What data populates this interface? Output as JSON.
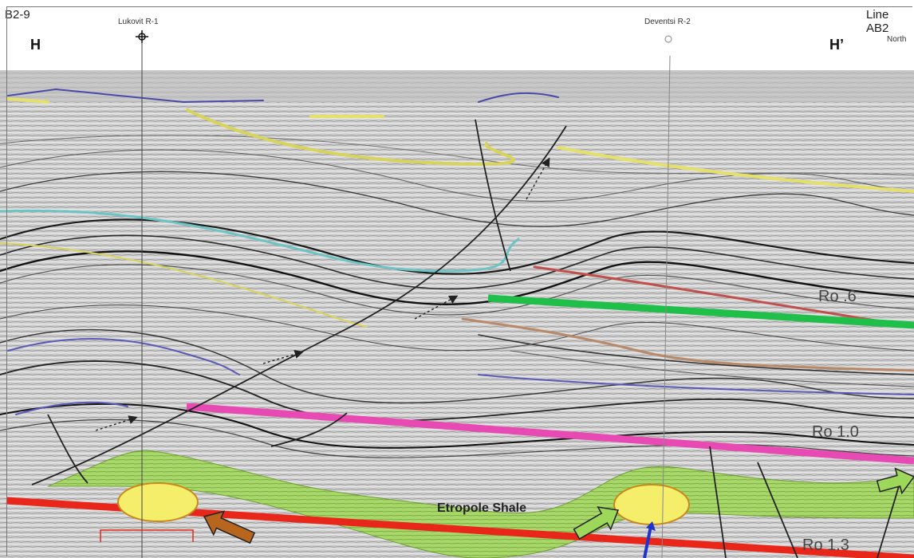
{
  "header": {
    "section_id": "B2-9",
    "line_name": "Line AB2",
    "north_label": "North",
    "left_marker": "H",
    "right_marker": "H’"
  },
  "wells": [
    {
      "name": "Lukovit R-1"
    },
    {
      "name": "Deventsi R-2"
    }
  ],
  "labels": {
    "ro_06": "Ro .6",
    "ro_10": "Ro 1.0",
    "ro_13": "Ro 1.3",
    "shale": "Etropole Shale"
  },
  "colors": {
    "background_section": "#c9c9c9",
    "ro06_line": "#1fbf4a",
    "ro10_line": "#e84ab4",
    "ro13_line": "#e8261a",
    "shale_fill": "#a6d66a",
    "yellow_ellipse": "#f4ee6a",
    "brown_arrow": "#b8651e",
    "green_arrow": "#9ed85b",
    "faults": "#222222"
  }
}
